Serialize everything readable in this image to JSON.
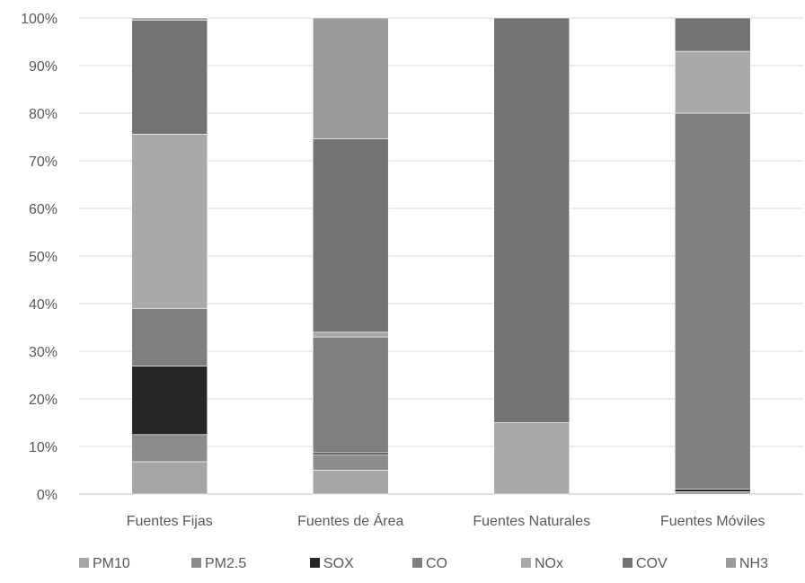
{
  "chart_data": {
    "type": "bar",
    "stacked": true,
    "percent": true,
    "title": "",
    "xlabel": "",
    "ylabel": "",
    "ylim": [
      0,
      100
    ],
    "y_ticks": [
      "0%",
      "10%",
      "20%",
      "30%",
      "40%",
      "50%",
      "60%",
      "70%",
      "80%",
      "90%",
      "100%"
    ],
    "y_tick_values": [
      0,
      10,
      20,
      30,
      40,
      50,
      60,
      70,
      80,
      90,
      100
    ],
    "grid": true,
    "legend_position": "bottom",
    "categories": [
      "Fuentes Fijas",
      "Fuentes de Área",
      "Fuentes Naturales",
      "Fuentes Móviles"
    ],
    "series": [
      {
        "name": "PM10",
        "color": "#a6a6a6",
        "values": [
          6.8,
          5.0,
          0.0,
          0.0
        ]
      },
      {
        "name": "PM2.5",
        "color": "#8c8c8c",
        "values": [
          5.7,
          3.3,
          0.0,
          0.5
        ]
      },
      {
        "name": "SOX",
        "color": "#262626",
        "values": [
          14.4,
          0.4,
          0.0,
          0.5
        ]
      },
      {
        "name": "CO",
        "color": "#7f7f7f",
        "values": [
          12.1,
          24.3,
          0.0,
          79.0
        ]
      },
      {
        "name": "NOx",
        "color": "#a9a9a9",
        "values": [
          36.6,
          1.0,
          15.0,
          13.0
        ]
      },
      {
        "name": "COV",
        "color": "#737373",
        "values": [
          23.9,
          40.6,
          85.0,
          7.0
        ]
      },
      {
        "name": "NH3",
        "color": "#9a9a9a",
        "values": [
          0.5,
          25.4,
          0.0,
          0.0
        ]
      }
    ]
  }
}
